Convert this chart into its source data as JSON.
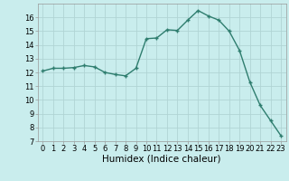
{
  "x": [
    0,
    1,
    2,
    3,
    4,
    5,
    6,
    7,
    8,
    9,
    10,
    11,
    12,
    13,
    14,
    15,
    16,
    17,
    18,
    19,
    20,
    21,
    22,
    23
  ],
  "y": [
    12.1,
    12.3,
    12.3,
    12.35,
    12.5,
    12.4,
    12.0,
    11.85,
    11.75,
    12.3,
    14.45,
    14.5,
    15.1,
    15.05,
    15.8,
    16.5,
    16.1,
    15.8,
    15.0,
    13.6,
    11.3,
    9.6,
    8.5,
    7.4
  ],
  "line_color": "#2e7d6e",
  "marker": "+",
  "marker_size": 3.5,
  "bg_color": "#c9eded",
  "grid_color": "#b0d4d4",
  "xlabel": "Humidex (Indice chaleur)",
  "xlim": [
    -0.5,
    23.5
  ],
  "ylim": [
    7,
    17
  ],
  "yticks": [
    7,
    8,
    9,
    10,
    11,
    12,
    13,
    14,
    15,
    16
  ],
  "xticks": [
    0,
    1,
    2,
    3,
    4,
    5,
    6,
    7,
    8,
    9,
    10,
    11,
    12,
    13,
    14,
    15,
    16,
    17,
    18,
    19,
    20,
    21,
    22,
    23
  ],
  "tick_fontsize": 6,
  "label_fontsize": 7.5,
  "line_width": 1.0
}
